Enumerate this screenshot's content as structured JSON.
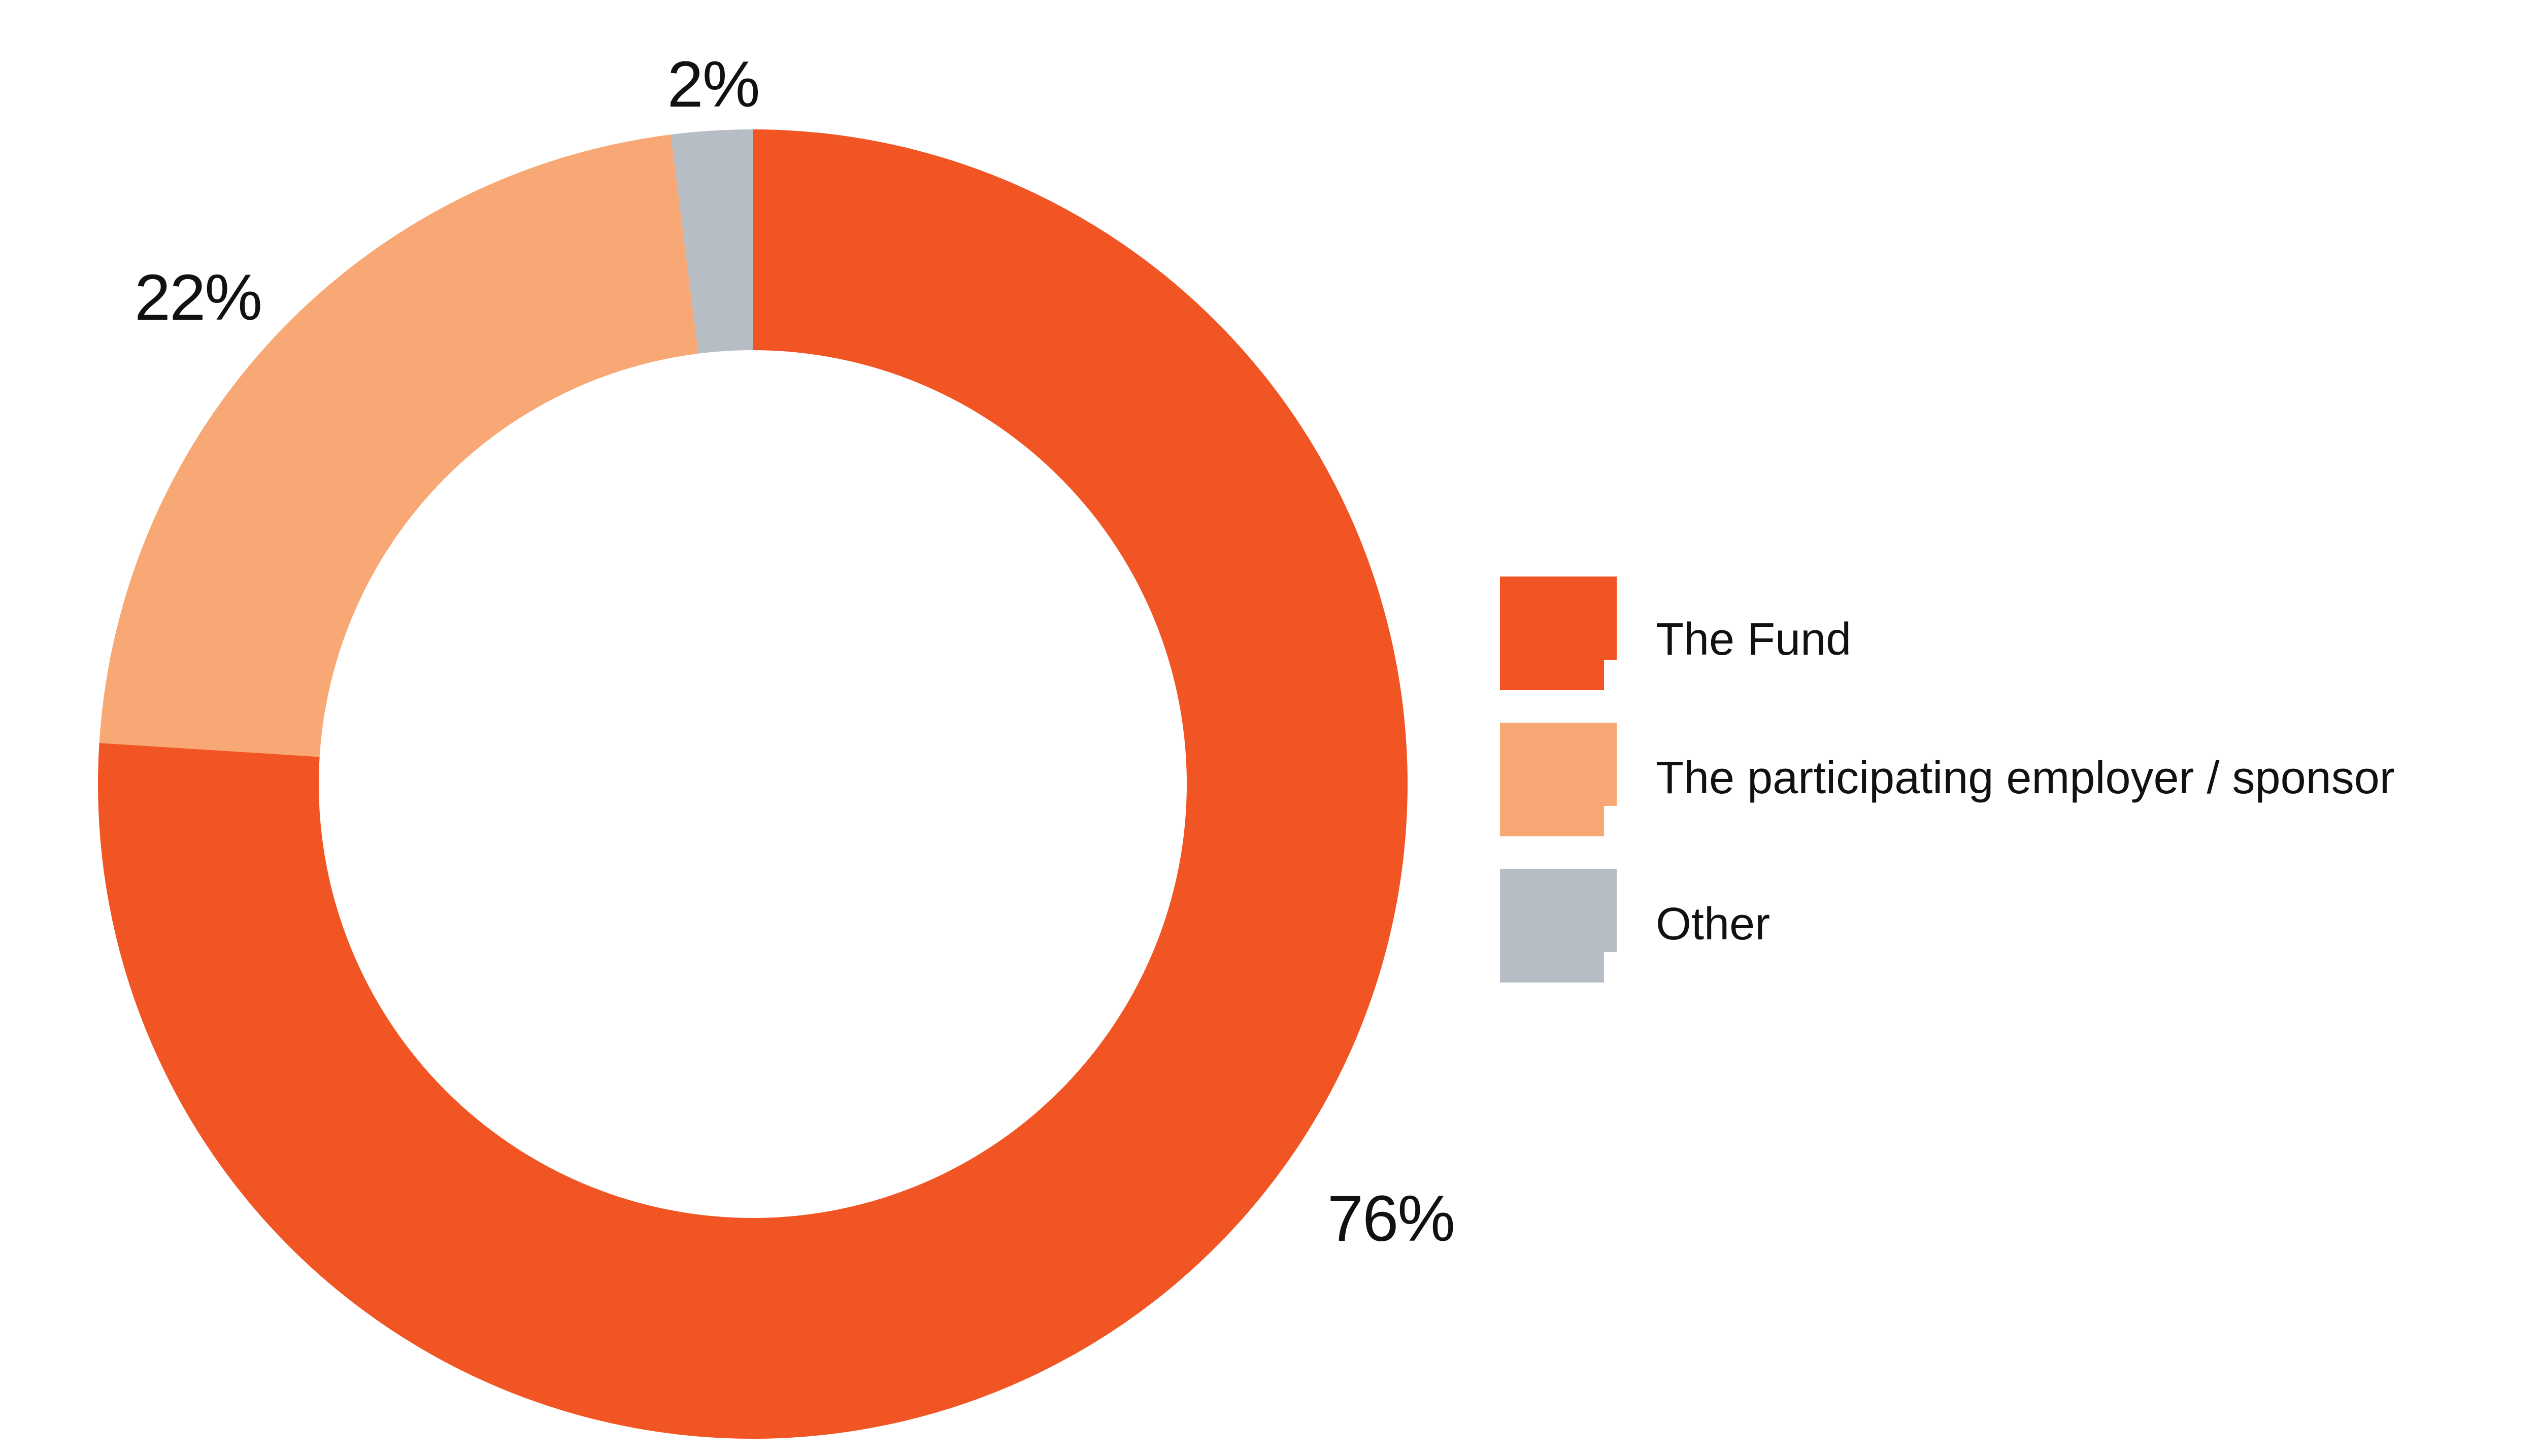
{
  "chart_data": {
    "type": "pie",
    "variant": "donut",
    "title": "",
    "legend_position": "right",
    "slices": [
      {
        "label": "The Fund",
        "value": 76,
        "display": "76%",
        "color": "#f05523"
      },
      {
        "label": "The participating employer / sponsor",
        "value": 22,
        "display": "22%",
        "color": "#f8a874"
      },
      {
        "label": "Other",
        "value": 2,
        "display": "2%",
        "color": "#b6bdc4"
      }
    ]
  }
}
